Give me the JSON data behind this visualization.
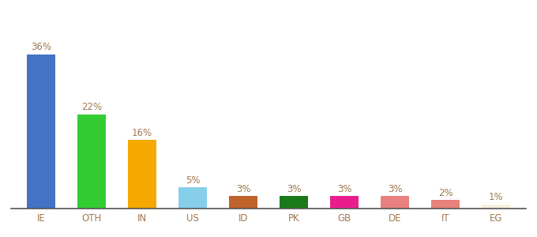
{
  "categories": [
    "IE",
    "OTH",
    "IN",
    "US",
    "ID",
    "PK",
    "GB",
    "DE",
    "IT",
    "EG"
  ],
  "values": [
    36,
    22,
    16,
    5,
    3,
    3,
    3,
    3,
    2,
    1
  ],
  "labels": [
    "36%",
    "22%",
    "16%",
    "5%",
    "3%",
    "3%",
    "3%",
    "3%",
    "2%",
    "1%"
  ],
  "bar_colors": [
    "#4472c4",
    "#33cc33",
    "#f5a800",
    "#87ceeb",
    "#c0622b",
    "#1a7a1a",
    "#e91e8c",
    "#e88080",
    "#e8827a",
    "#f5f0d8"
  ],
  "background_color": "#ffffff",
  "label_color": "#a07850",
  "label_fontsize": 8.5,
  "xtick_fontsize": 8.5,
  "xtick_color": "#a07850",
  "ylim": [
    0,
    42
  ],
  "bar_width": 0.55
}
